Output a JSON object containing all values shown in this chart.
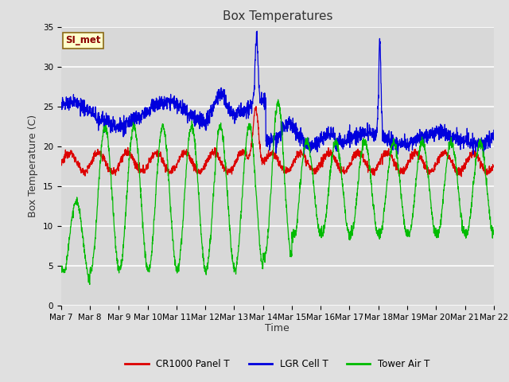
{
  "title": "Box Temperatures",
  "ylabel": "Box Temperature (C)",
  "xlabel": "Time",
  "annotation": "SI_met",
  "ylim": [
    0,
    35
  ],
  "yticks": [
    0,
    5,
    10,
    15,
    20,
    25,
    30,
    35
  ],
  "xtick_labels": [
    "Mar 7",
    "Mar 8",
    "Mar 9",
    "Mar 10",
    "Mar 11",
    "Mar 12",
    "Mar 13",
    "Mar 14",
    "Mar 15",
    "Mar 16",
    "Mar 17",
    "Mar 18",
    "Mar 19",
    "Mar 20",
    "Mar 21",
    "Mar 22"
  ],
  "bg_color": "#e0e0e0",
  "plot_bg_color": "#d8d8d8",
  "line_colors": {
    "panel": "#dd0000",
    "lgr": "#0000dd",
    "tower": "#00bb00"
  },
  "legend_labels": [
    "CR1000 Panel T",
    "LGR Cell T",
    "Tower Air T"
  ],
  "title_fontsize": 11,
  "axis_label_fontsize": 9,
  "tick_fontsize": 7.5
}
